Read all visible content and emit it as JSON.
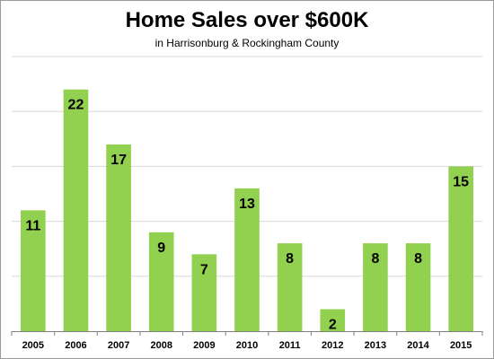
{
  "chart_data": {
    "type": "bar",
    "title": "Home Sales over $600K",
    "subtitle": "in Harrisonburg & Rockingham County",
    "categories": [
      "2005",
      "2006",
      "2007",
      "2008",
      "2009",
      "2010",
      "2011",
      "2012",
      "2013",
      "2014",
      "2015"
    ],
    "values": [
      11,
      22,
      17,
      9,
      7,
      13,
      8,
      2,
      8,
      8,
      15
    ],
    "xlabel": "",
    "ylabel": "",
    "ylim": [
      0,
      25
    ],
    "grid": true,
    "legend": "none",
    "colors": {
      "bar": "#92D050",
      "grid": "#d9d9d9",
      "axis": "#808080",
      "text": "#000000"
    }
  }
}
